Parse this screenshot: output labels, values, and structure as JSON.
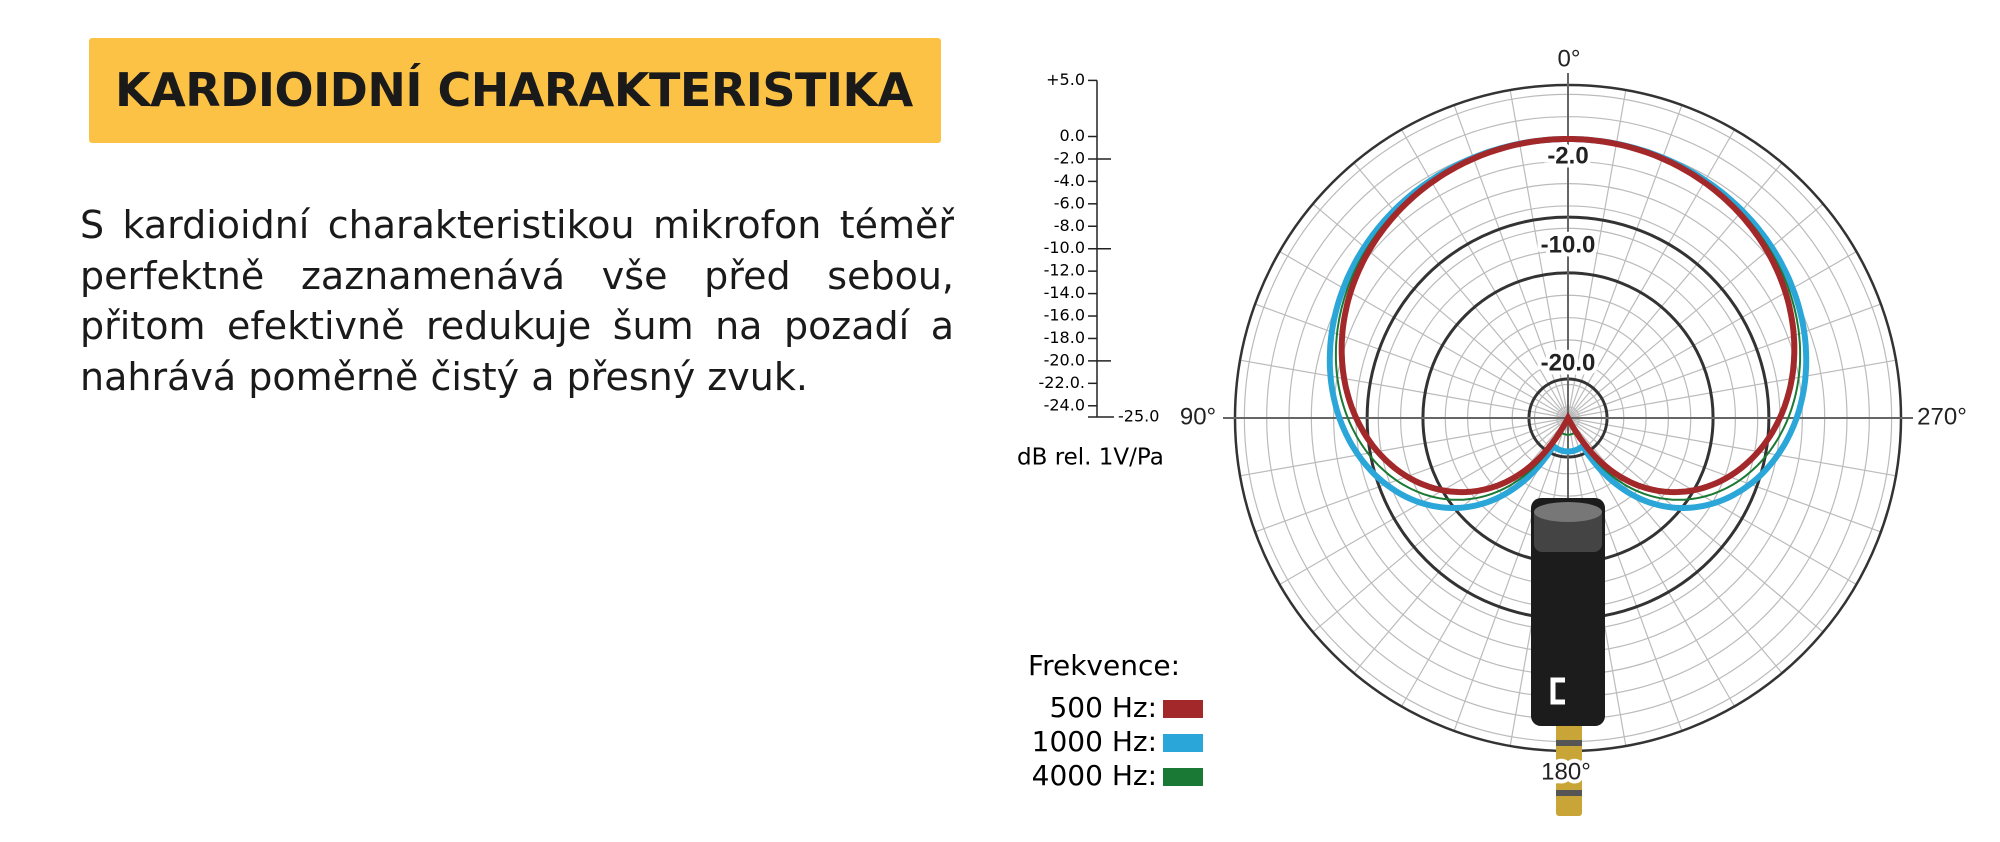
{
  "header": {
    "title": "KARDIOIDNÍ CHARAKTERISTIKA"
  },
  "description": "S kardioidní charakteristikou mikrofon téměř perfektně zaznamenává vše před sebou, přitom efektivně redukuje šum na pozadí a nahrává poměrně čistý a přesný zvuk.",
  "polar_plot": {
    "angle_labels": [
      "0°",
      "90°",
      "270°",
      "180°"
    ],
    "ring_labels": [
      "-2.0",
      "-10.0",
      "-20.0"
    ],
    "scale": {
      "ticks": [
        {
          "value": 5,
          "label": "+5.0"
        },
        {
          "value": 0,
          "label": "0.0"
        },
        {
          "value": -2,
          "label": "-2.0"
        },
        {
          "value": -4,
          "label": "-4.0"
        },
        {
          "value": -6,
          "label": "-6.0"
        },
        {
          "value": -8,
          "label": "-8.0"
        },
        {
          "value": -10,
          "label": "-10.0"
        },
        {
          "value": -12,
          "label": "-12.0"
        },
        {
          "value": -14,
          "label": "-14.0"
        },
        {
          "value": -16,
          "label": "-16.0"
        },
        {
          "value": -18,
          "label": "-18.0"
        },
        {
          "value": -20,
          "label": "-20.0"
        },
        {
          "value": -22,
          "label": "-22.0."
        },
        {
          "value": -24,
          "label": "-24.0"
        },
        {
          "value": -25,
          "label": "-25.0"
        }
      ],
      "unit": "dB rel. 1V/Pa"
    },
    "legend": {
      "title": "Frekvence:",
      "items": [
        {
          "label": "500 Hz:",
          "color": "#a3282a"
        },
        {
          "label": "1000 Hz:",
          "color": "#2aa6d8"
        },
        {
          "label": "4000 Hz:",
          "color": "#1a7a35"
        }
      ]
    }
  }
}
